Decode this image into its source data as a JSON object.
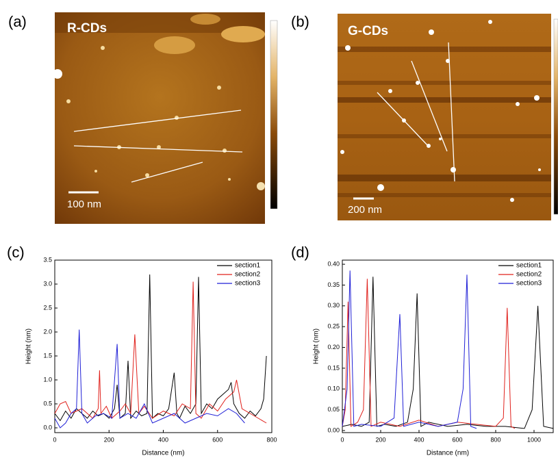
{
  "images": [
    {
      "panel_label": "(a)",
      "name": "R-CDs",
      "scale_bar": "100 nm"
    },
    {
      "panel_label": "(b)",
      "name": "G-CDs",
      "scale_bar": "200 nm"
    }
  ],
  "chart_data": [
    {
      "type": "line",
      "panel_label": "(c)",
      "x_label": "Distance (nm)",
      "y_label": "Height (nm)",
      "xlim": [
        0,
        800
      ],
      "xticks": [
        0,
        200,
        400,
        600,
        800
      ],
      "ylim": [
        -0.1,
        3.5
      ],
      "yticks": [
        {
          "value": 0,
          "label": "0.0"
        },
        0.5,
        {
          "value": 1,
          "label": "1.0"
        },
        1.5,
        {
          "value": 2,
          "label": "2.0"
        },
        2.5,
        {
          "value": 3,
          "label": "3.0"
        },
        3.5
      ],
      "legend": "upper right",
      "series": [
        {
          "name": "section1",
          "color": "#000000",
          "x": [
            0,
            20,
            40,
            60,
            80,
            100,
            120,
            140,
            160,
            180,
            200,
            220,
            230,
            240,
            260,
            270,
            280,
            300,
            320,
            340,
            350,
            360,
            380,
            400,
            420,
            440,
            450,
            460,
            480,
            500,
            520,
            530,
            540,
            560,
            580,
            600,
            620,
            640,
            650,
            660,
            680,
            700,
            720,
            740,
            760,
            770,
            780
          ],
          "values": [
            0.3,
            0.15,
            0.35,
            0.2,
            0.4,
            0.3,
            0.2,
            0.35,
            0.25,
            0.3,
            0.2,
            0.4,
            0.9,
            0.2,
            0.3,
            1.4,
            0.2,
            0.35,
            0.25,
            0.3,
            3.2,
            0.2,
            0.3,
            0.25,
            0.4,
            1.15,
            0.3,
            0.2,
            0.45,
            0.3,
            0.5,
            3.15,
            0.3,
            0.5,
            0.4,
            0.6,
            0.7,
            0.8,
            0.95,
            0.5,
            0.3,
            0.2,
            0.35,
            0.25,
            0.4,
            0.6,
            1.5
          ]
        },
        {
          "name": "section2",
          "color": "#e0201b",
          "x": [
            0,
            20,
            40,
            60,
            80,
            100,
            120,
            140,
            160,
            165,
            170,
            190,
            210,
            240,
            260,
            280,
            295,
            310,
            330,
            360,
            400,
            440,
            470,
            500,
            510,
            520,
            540,
            570,
            600,
            630,
            660,
            670,
            690,
            720,
            750,
            780
          ],
          "values": [
            0.3,
            0.5,
            0.55,
            0.3,
            0.35,
            0.4,
            0.3,
            0.2,
            0.4,
            1.2,
            0.3,
            0.45,
            0.2,
            0.35,
            0.5,
            0.3,
            1.95,
            0.3,
            0.45,
            0.2,
            0.35,
            0.25,
            0.5,
            0.4,
            3.05,
            0.3,
            0.2,
            0.5,
            0.35,
            0.6,
            0.75,
            1.0,
            0.4,
            0.3,
            0.2,
            0.1
          ]
        },
        {
          "name": "section3",
          "color": "#1f1fd6",
          "x": [
            0,
            20,
            40,
            60,
            80,
            90,
            100,
            120,
            150,
            180,
            210,
            230,
            240,
            270,
            300,
            330,
            360,
            400,
            440,
            480,
            520,
            560,
            600,
            640,
            670,
            700
          ],
          "values": [
            0.2,
            0.0,
            0.1,
            0.3,
            0.4,
            2.05,
            0.3,
            0.1,
            0.25,
            0.3,
            0.2,
            1.75,
            0.2,
            0.3,
            0.2,
            0.5,
            0.1,
            0.2,
            0.3,
            0.1,
            0.2,
            0.3,
            0.25,
            0.4,
            0.3,
            0.1
          ]
        }
      ]
    },
    {
      "type": "line",
      "panel_label": "(d)",
      "x_label": "Distance (nm)",
      "y_label": "Height (nm)",
      "xlim": [
        0,
        1100
      ],
      "xticks": [
        0,
        200,
        400,
        600,
        800,
        1000
      ],
      "ylim": [
        -0.005,
        0.41
      ],
      "yticks": [
        {
          "value": 0,
          "label": "0.00"
        },
        0.05,
        {
          "value": 0.1,
          "label": "0.10"
        },
        0.15,
        {
          "value": 0.2,
          "label": "0.20"
        },
        0.25,
        {
          "value": 0.3,
          "label": "0.30"
        },
        0.35,
        {
          "value": 0.4,
          "label": "0.40"
        }
      ],
      "legend": "upper right",
      "series": [
        {
          "name": "section1",
          "color": "#000000",
          "x": [
            0,
            50,
            100,
            140,
            160,
            180,
            220,
            280,
            340,
            370,
            390,
            410,
            450,
            550,
            650,
            750,
            850,
            950,
            990,
            1020,
            1050,
            1100
          ],
          "values": [
            0.01,
            0.015,
            0.01,
            0.02,
            0.37,
            0.01,
            0.015,
            0.01,
            0.02,
            0.1,
            0.33,
            0.01,
            0.02,
            0.01,
            0.015,
            0.01,
            0.01,
            0.005,
            0.05,
            0.3,
            0.01,
            0.005
          ]
        },
        {
          "name": "section2",
          "color": "#e0201b",
          "x": [
            0,
            15,
            30,
            45,
            80,
            110,
            130,
            150,
            200,
            300,
            400,
            500,
            600,
            700,
            800,
            840,
            860,
            880,
            900
          ],
          "values": [
            0.01,
            0.05,
            0.31,
            0.01,
            0.02,
            0.05,
            0.365,
            0.01,
            0.02,
            0.01,
            0.025,
            0.01,
            0.02,
            0.015,
            0.01,
            0.03,
            0.295,
            0.01,
            0.005
          ]
        },
        {
          "name": "section3",
          "color": "#1f1fd6",
          "x": [
            0,
            25,
            40,
            60,
            100,
            200,
            270,
            300,
            320,
            400,
            500,
            600,
            630,
            650,
            670,
            700
          ],
          "values": [
            0.01,
            0.1,
            0.385,
            0.01,
            0.015,
            0.01,
            0.03,
            0.28,
            0.01,
            0.02,
            0.01,
            0.02,
            0.1,
            0.375,
            0.01,
            0.005
          ]
        }
      ]
    }
  ]
}
